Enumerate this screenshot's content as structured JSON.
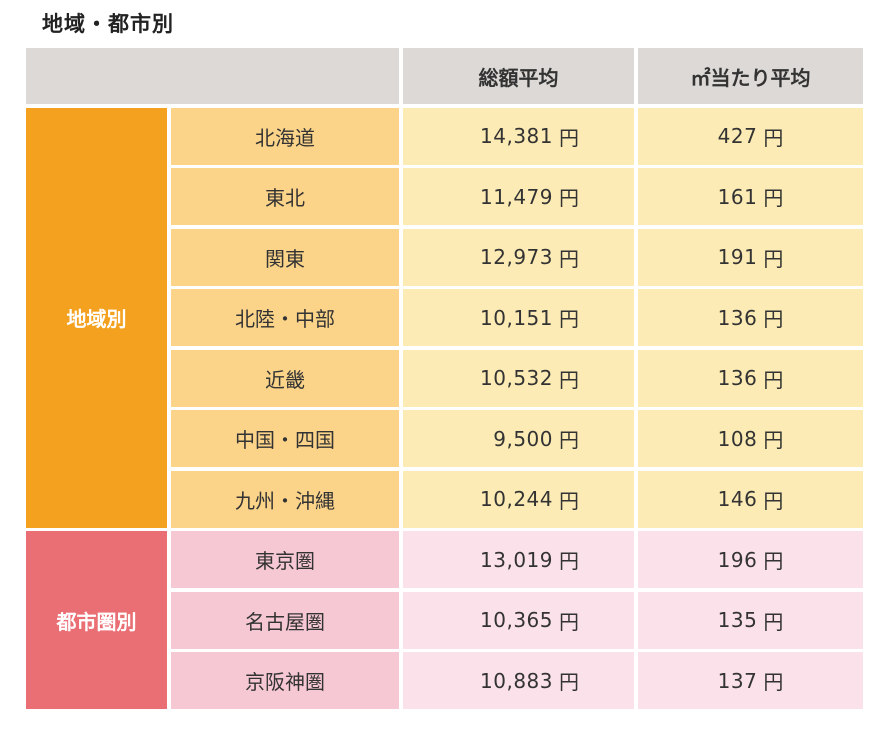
{
  "title": "地域・都市別",
  "header": {
    "total_avg": "総額平均",
    "per_sqm_avg": "㎡当たり平均"
  },
  "unit": "円",
  "groups": [
    {
      "label": "地域別",
      "rows": [
        {
          "name": "北海道",
          "total": "14,381",
          "per_sqm": "427"
        },
        {
          "name": "東北",
          "total": "11,479",
          "per_sqm": "161"
        },
        {
          "name": "関東",
          "total": "12,973",
          "per_sqm": "191"
        },
        {
          "name": "北陸・中部",
          "total": "10,151",
          "per_sqm": "136"
        },
        {
          "name": "近畿",
          "total": "10,532",
          "per_sqm": "136"
        },
        {
          "name": "中国・四国",
          "total": "9,500",
          "per_sqm": "108"
        },
        {
          "name": "九州・沖縄",
          "total": "10,244",
          "per_sqm": "146"
        }
      ]
    },
    {
      "label": "都市圏別",
      "rows": [
        {
          "name": "東京圏",
          "total": "13,019",
          "per_sqm": "196"
        },
        {
          "name": "名古屋圏",
          "total": "10,365",
          "per_sqm": "135"
        },
        {
          "name": "京阪神圏",
          "total": "10,883",
          "per_sqm": "137"
        }
      ]
    }
  ],
  "colors": {
    "header_bg": "#dcd9d6",
    "region_group": "#f3a11f",
    "region_label": "#fbd48a",
    "region_value": "#fcebb4",
    "city_group": "#ea6f75",
    "city_label": "#f6c8d4",
    "city_value": "#fbe1ea"
  }
}
